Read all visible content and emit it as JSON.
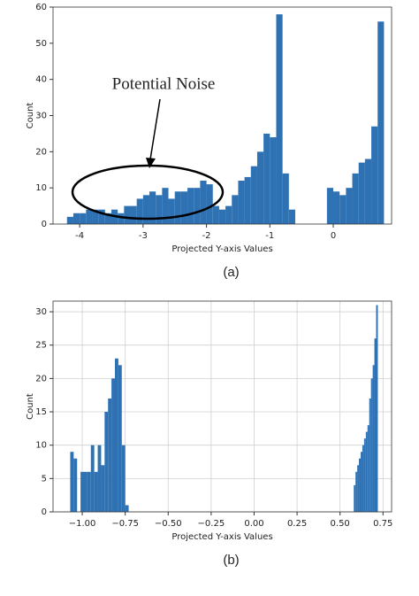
{
  "chart_data": [
    {
      "type": "histogram",
      "xlabel": "Projected Y-axis Values",
      "ylabel": "Count",
      "annotation": "Potential Noise",
      "caption": "(a)",
      "color": "#2f72b4",
      "grid": false,
      "bins": [
        -4.2,
        -4.1,
        -4.0,
        -3.9,
        -3.8,
        -3.7,
        -3.6,
        -3.5,
        -3.4,
        -3.3,
        -3.2,
        -3.1,
        -3.0,
        -2.9,
        -2.8,
        -2.7,
        -2.6,
        -2.5,
        -2.4,
        -2.3,
        -2.2,
        -2.1,
        -2.0,
        -1.9,
        -1.8,
        -1.7,
        -1.6,
        -1.5,
        -1.4,
        -1.3,
        -1.2,
        -1.1,
        -1.0,
        -0.9,
        -0.8,
        -0.7,
        -0.6,
        -0.5,
        -0.4,
        -0.3,
        -0.2,
        -0.1,
        0.0,
        0.1,
        0.2,
        0.3,
        0.4,
        0.5,
        0.6,
        0.7,
        0.8
      ],
      "values": [
        2,
        3,
        3,
        4,
        4,
        4,
        3,
        4,
        3,
        5,
        5,
        7,
        8,
        9,
        8,
        10,
        7,
        9,
        9,
        10,
        10,
        12,
        11,
        5,
        4,
        5,
        8,
        12,
        13,
        16,
        20,
        25,
        24,
        58,
        14,
        4,
        0,
        0,
        0,
        0,
        0,
        10,
        9,
        8,
        10,
        14,
        17,
        18,
        27,
        56
      ],
      "xlim": [
        -4.42,
        0.92
      ],
      "xticks": [
        -4,
        -3,
        -2,
        -1,
        0
      ],
      "ylim": [
        0,
        60
      ],
      "yticks": [
        0,
        10,
        20,
        30,
        40,
        50,
        60
      ]
    },
    {
      "type": "histogram",
      "xlabel": "Projected Y-axis Values",
      "ylabel": "Count",
      "caption": "(b)",
      "color": "#2f72b4",
      "grid": true,
      "bins": [
        -1.07,
        -1.05,
        -1.03,
        -1.01,
        -0.99,
        -0.97,
        -0.95,
        -0.93,
        -0.91,
        -0.89,
        -0.87,
        -0.85,
        -0.83,
        -0.81,
        -0.79,
        -0.77,
        -0.75,
        -0.73,
        0.58,
        0.59,
        0.6,
        0.61,
        0.62,
        0.63,
        0.64,
        0.65,
        0.66,
        0.67,
        0.68,
        0.69,
        0.7,
        0.71,
        0.72
      ],
      "values": [
        9,
        8,
        0,
        6,
        6,
        6,
        10,
        6,
        10,
        7,
        15,
        17,
        20,
        23,
        22,
        10,
        1,
        0,
        4,
        6,
        7,
        8,
        9,
        10,
        11,
        12,
        13,
        17,
        20,
        22,
        26,
        31
      ],
      "xlim": [
        -1.17,
        0.8
      ],
      "xticks": [
        {
          "value": -1,
          "label": "−1.00"
        },
        {
          "value": -0.75,
          "label": "−0.75"
        },
        {
          "value": -0.5,
          "label": "−0.50"
        },
        {
          "value": -0.25,
          "label": "−0.25"
        },
        {
          "value": 0,
          "label": "0.00"
        },
        {
          "value": 0.25,
          "label": "0.25"
        },
        {
          "value": 0.5,
          "label": "0.50"
        },
        {
          "value": 0.75,
          "label": "0.75"
        }
      ],
      "ylim": [
        0,
        31.6
      ],
      "yticks": [
        0,
        5,
        10,
        15,
        20,
        25,
        30
      ]
    }
  ]
}
